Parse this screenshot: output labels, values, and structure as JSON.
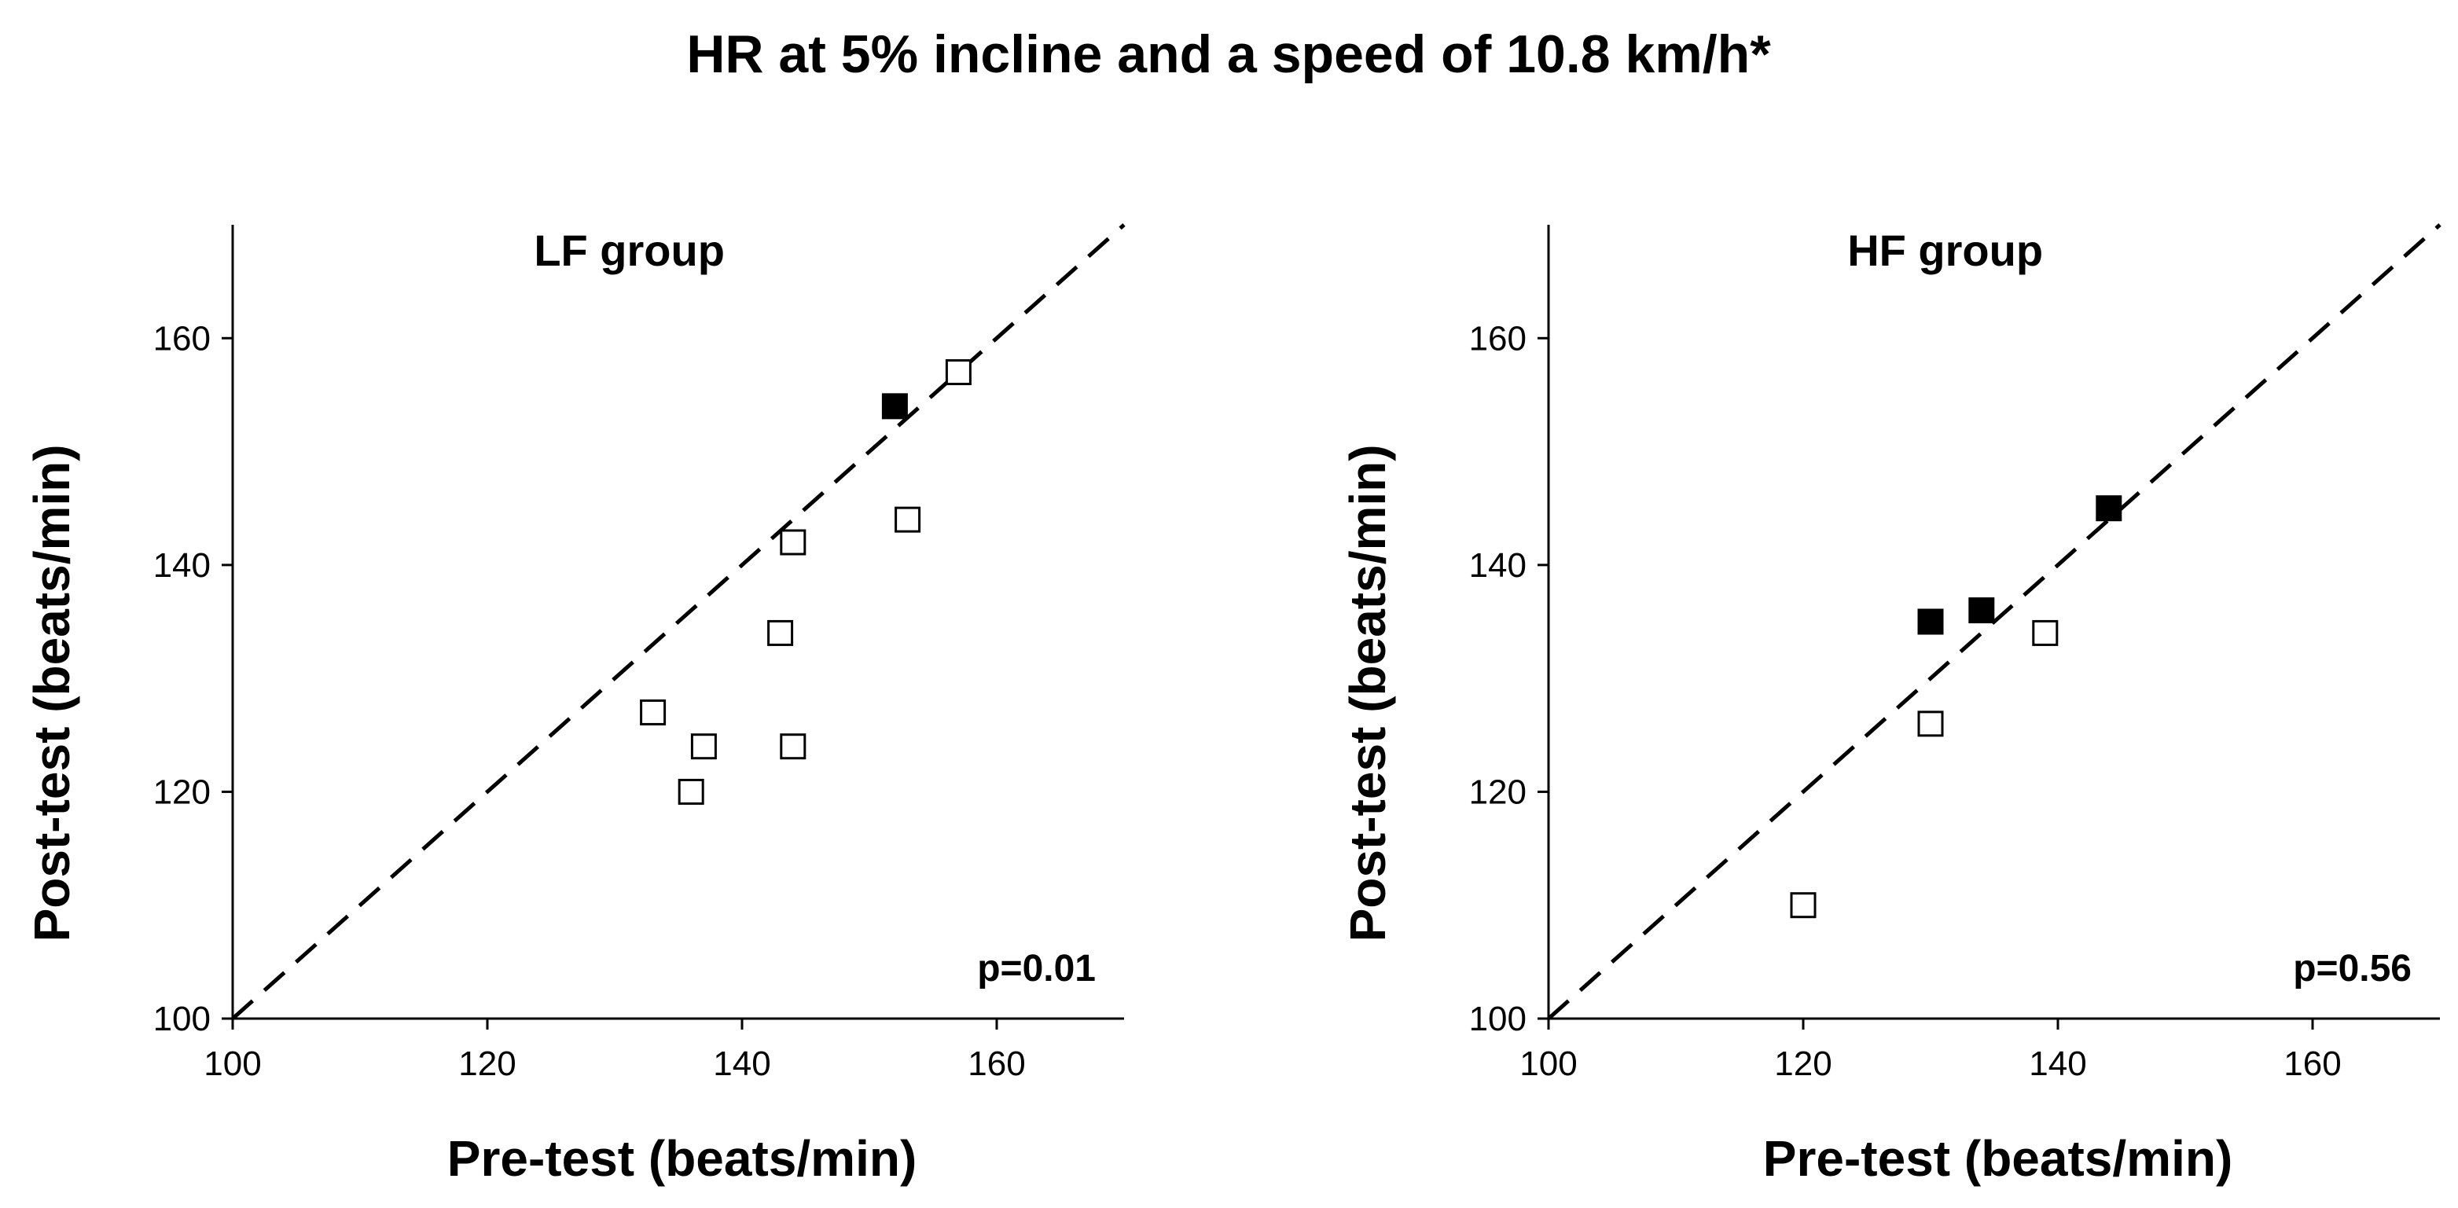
{
  "title": "HR at 5% incline and a speed of 10.8 km/h*",
  "colors": {
    "filled": "#000000",
    "open": "#ffffff",
    "stroke": "#000000"
  },
  "chart_data": [
    {
      "type": "scatter",
      "title": "LF group",
      "xlabel": "Pre-test (beats/min)",
      "ylabel": "Post-test (beats/min)",
      "xlim": [
        100,
        170
      ],
      "ylim": [
        100,
        170
      ],
      "xticks": [
        100,
        120,
        140,
        160
      ],
      "yticks": [
        100,
        120,
        140,
        160
      ],
      "xtick_labels": [
        "100",
        "120",
        "140",
        "160"
      ],
      "ytick_labels": [
        "100",
        "120",
        "140",
        "160"
      ],
      "reference_line": "identity (dashed)",
      "annotation": "p=0.01",
      "series": [
        {
          "name": "filled",
          "points": [
            [
              152,
              154
            ]
          ]
        },
        {
          "name": "open",
          "points": [
            [
              157,
              157
            ],
            [
              153,
              144
            ],
            [
              144,
              142
            ],
            [
              143,
              134
            ],
            [
              133,
              127
            ],
            [
              137,
              124
            ],
            [
              144,
              124
            ],
            [
              136,
              120
            ]
          ]
        }
      ]
    },
    {
      "type": "scatter",
      "title": "HF group",
      "xlabel": "Pre-test (beats/min)",
      "ylabel": "Post-test (beats/min)",
      "xlim": [
        100,
        170
      ],
      "ylim": [
        100,
        170
      ],
      "xticks": [
        100,
        120,
        140,
        160
      ],
      "yticks": [
        100,
        120,
        140,
        160
      ],
      "xtick_labels": [
        "100",
        "120",
        "140",
        "160"
      ],
      "ytick_labels": [
        "100",
        "120",
        "140",
        "160"
      ],
      "reference_line": "identity (dashed)",
      "annotation": "p=0.56",
      "series": [
        {
          "name": "filled",
          "points": [
            [
              144,
              145
            ],
            [
              134,
              136
            ],
            [
              130,
              135
            ]
          ]
        },
        {
          "name": "open",
          "points": [
            [
              139,
              134
            ],
            [
              130,
              126
            ],
            [
              120,
              110
            ]
          ]
        }
      ]
    }
  ]
}
